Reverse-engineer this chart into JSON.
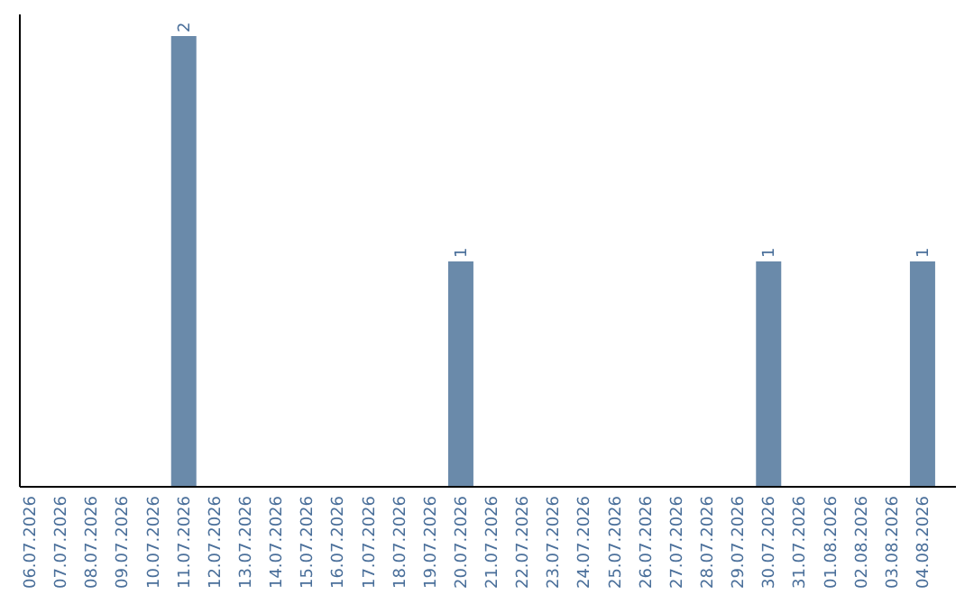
{
  "chart_data": {
    "type": "bar",
    "categories": [
      "06.07.2026",
      "07.07.2026",
      "08.07.2026",
      "09.07.2026",
      "10.07.2026",
      "11.07.2026",
      "12.07.2026",
      "13.07.2026",
      "14.07.2026",
      "15.07.2026",
      "16.07.2026",
      "17.07.2026",
      "18.07.2026",
      "19.07.2026",
      "20.07.2026",
      "21.07.2026",
      "22.07.2026",
      "23.07.2026",
      "24.07.2026",
      "25.07.2026",
      "26.07.2026",
      "27.07.2026",
      "28.07.2026",
      "29.07.2026",
      "30.07.2026",
      "31.07.2026",
      "01.08.2026",
      "02.08.2026",
      "03.08.2026",
      "04.08.2026"
    ],
    "values": [
      0,
      0,
      0,
      0,
      0,
      2,
      0,
      0,
      0,
      0,
      0,
      0,
      0,
      0,
      1,
      0,
      0,
      0,
      0,
      0,
      0,
      0,
      0,
      0,
      1,
      0,
      0,
      0,
      0,
      1
    ],
    "value_labels": [
      null,
      null,
      null,
      null,
      null,
      "2",
      null,
      null,
      null,
      null,
      null,
      null,
      null,
      null,
      "1",
      null,
      null,
      null,
      null,
      null,
      null,
      null,
      null,
      null,
      "1",
      null,
      null,
      null,
      null,
      "1"
    ],
    "color": "#6a8aaa",
    "relative": false
  }
}
